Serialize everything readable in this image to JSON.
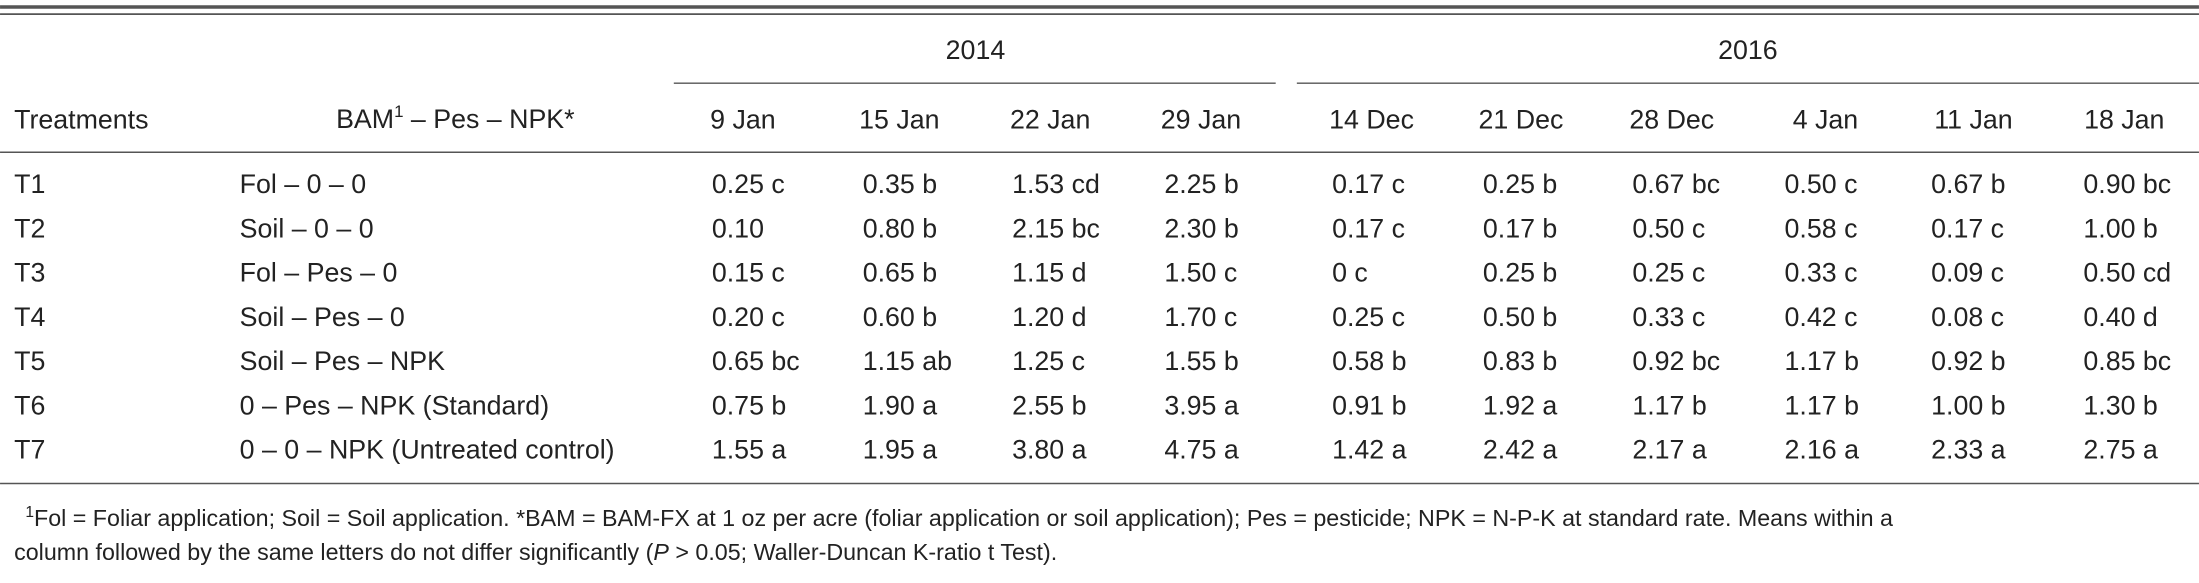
{
  "table": {
    "years": [
      "2014",
      "2016"
    ],
    "header": {
      "treatments": "Treatments",
      "bam": {
        "main": "BAM",
        "sup": "1",
        "rest": " – Pes – NPK*"
      },
      "dates": [
        "9 Jan",
        "15 Jan",
        "22 Jan",
        "29 Jan",
        "14 Dec",
        "21 Dec",
        "28 Dec",
        "4 Jan",
        "11 Jan",
        "18 Jan"
      ]
    },
    "rows": [
      [
        "T1",
        "Fol – 0 – 0",
        "0.25 c",
        "0.35 b",
        "1.53 cd",
        "2.25 b",
        "0.17 c",
        "0.25 b",
        "0.67 bc",
        "0.50 c",
        "0.67 b",
        "0.90 bc"
      ],
      [
        "T2",
        "Soil – 0 – 0",
        "0.10",
        "0.80 b",
        "2.15 bc",
        "2.30 b",
        "0.17 c",
        "0.17 b",
        "0.50 c",
        "0.58 c",
        "0.17 c",
        "1.00 b"
      ],
      [
        "T3",
        "Fol – Pes – 0",
        "0.15 c",
        "0.65 b",
        "1.15 d",
        "1.50 c",
        "0 c",
        "0.25 b",
        "0.25 c",
        "0.33 c",
        "0.09 c",
        "0.50 cd"
      ],
      [
        "T4",
        "Soil – Pes – 0",
        "0.20 c",
        "0.60 b",
        "1.20 d",
        "1.70 c",
        "0.25 c",
        "0.50 b",
        "0.33 c",
        "0.42 c",
        "0.08 c",
        "0.40 d"
      ],
      [
        "T5",
        "Soil – Pes – NPK",
        "0.65 bc",
        "1.15 ab",
        "1.25 c",
        "1.55 b",
        "0.58 b",
        "0.83 b",
        "0.92 bc",
        "1.17 b",
        "0.92 b",
        "0.85 bc"
      ],
      [
        "T6",
        "0 – Pes – NPK (Standard)",
        "0.75 b",
        "1.90 a",
        "2.55 b",
        "3.95 a",
        "0.91 b",
        "1.92 a",
        "1.17 b",
        "1.17 b",
        "1.00 b",
        "1.30 b"
      ],
      [
        "T7",
        "0 – 0 – NPK (Untreated control)",
        "1.55 a",
        "1.95 a",
        "3.80 a",
        "4.75 a",
        "1.42 a",
        "2.42 a",
        "2.17 a",
        "2.16 a",
        "2.33 a",
        "2.75 a"
      ]
    ]
  },
  "footnote": {
    "sup": "1",
    "line1": "Fol = Foliar application; Soil = Soil application. *BAM = BAM-FX at 1 oz per acre (foliar application or soil application); Pes = pesticide; NPK = N-P-K at standard rate. Means within a",
    "line2_start": "column followed by the same letters do not differ significantly (",
    "line2_italic": "P",
    "line2_end": " > 0.05; Waller-Duncan K-ratio t Test)."
  }
}
